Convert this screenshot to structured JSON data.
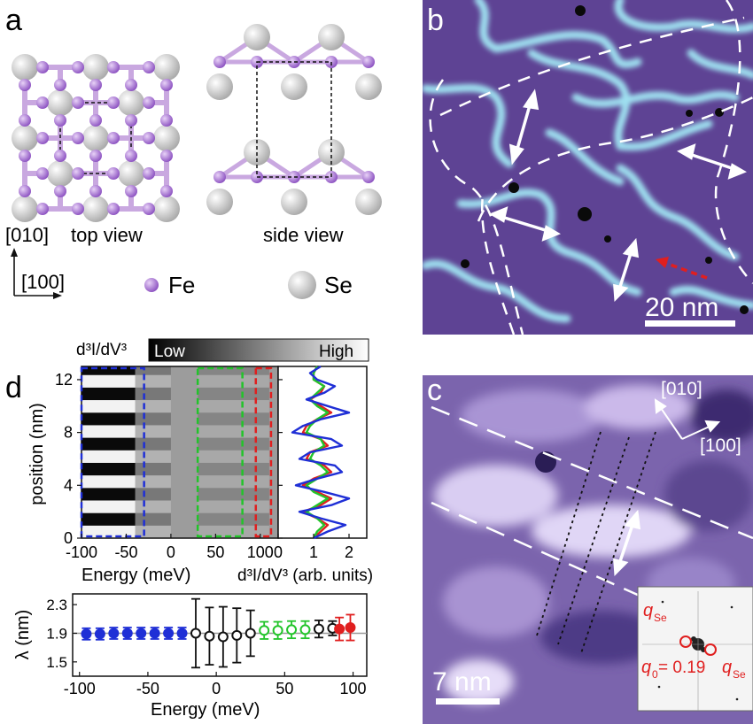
{
  "panels": {
    "a": {
      "letter": "a",
      "top_view_label": "top view",
      "side_view_label": "side view",
      "axis_y": "[010]",
      "axis_x": "[100]",
      "legend": [
        {
          "label": "Fe",
          "color": "#9a5fc7"
        },
        {
          "label": "Se",
          "color": "#c9c9c9"
        }
      ]
    },
    "b": {
      "letter": "b",
      "scale_bar": "20 nm"
    },
    "c": {
      "letter": "c",
      "scale_bar": "7 nm",
      "axis_1": "[010]",
      "axis_2": "[100]",
      "inset_label_top": "q",
      "inset_label_top_sub": "Se",
      "inset_label_bottom": "q",
      "inset_label_bottom_sub": "0",
      "inset_eq": " = 0.19",
      "inset_eq_q": "q",
      "inset_eq_sub": "Se"
    },
    "d": {
      "letter": "d",
      "colorbar_label": "d³I/dV³",
      "colorbar_low": "Low",
      "colorbar_high": "High",
      "heatmap_ylabel": "position (nm)",
      "heatmap_xlabel": "Energy (meV)",
      "profile_xlabel": "d³I/dV³ (arb. units)",
      "lambda_ylabel": "λ (nm)",
      "lambda_xlabel": "Energy (meV)"
    }
  },
  "colors": {
    "blue": "#1f2fd6",
    "green": "#22c42a",
    "red": "#e01f1f",
    "black": "#111111",
    "stm_purple": "#6a4fa0"
  },
  "chart_data": [
    {
      "type": "heatmap",
      "title": "",
      "xlabel": "Energy (meV)",
      "ylabel": "position (nm)",
      "xlim": [
        -100,
        120
      ],
      "ylim": [
        0,
        13
      ],
      "xticks": [
        -100,
        -50,
        0,
        50,
        100
      ],
      "yticks": [
        0,
        4,
        8,
        12
      ],
      "regions": [
        {
          "color": "#1f2fd6",
          "x_range": [
            -100,
            -30
          ]
        },
        {
          "color": "#22c42a",
          "x_range": [
            30,
            80
          ]
        },
        {
          "color": "#e01f1f",
          "x_range": [
            95,
            112
          ]
        }
      ]
    },
    {
      "type": "line",
      "xlabel": "d³I/dV³ (arb. units)",
      "xlim": [
        0,
        2.5
      ],
      "ylim": [
        0,
        13
      ],
      "xticks": [
        0,
        1,
        2
      ],
      "series": [
        {
          "color": "#1f2fd6",
          "x": [
            1.0,
            1.4,
            1.9,
            1.2,
            0.6,
            1.5,
            2.0,
            1.3,
            0.5,
            1.1,
            1.8,
            1.6,
            0.6,
            0.9,
            1.8,
            1.5,
            0.4,
            0.7,
            1.2,
            2.0,
            1.4,
            0.8,
            1.3,
            1.6,
            1.1,
            0.9,
            1.2
          ],
          "y": [
            0,
            0.5,
            1,
            1.5,
            2,
            2.5,
            3,
            3.5,
            4,
            4.5,
            5,
            5.5,
            6,
            6.5,
            7,
            7.5,
            8,
            8.5,
            9,
            9.5,
            10,
            10.5,
            11,
            11.5,
            12,
            12.5,
            13
          ]
        },
        {
          "color": "#22c42a",
          "x": [
            1.0,
            1.1,
            1.3,
            1.1,
            0.8,
            1.1,
            1.4,
            1.0,
            0.8,
            1.1,
            1.4,
            1.2,
            0.9,
            1.0,
            1.3,
            1.2,
            0.8,
            0.9,
            1.1,
            1.4,
            1.1,
            0.9,
            1.1,
            1.3,
            1.0,
            1.0,
            1.1
          ],
          "y": [
            0,
            0.5,
            1,
            1.5,
            2,
            2.5,
            3,
            3.5,
            4,
            4.5,
            5,
            5.5,
            6,
            6.5,
            7,
            7.5,
            8,
            8.5,
            9,
            9.5,
            10,
            10.5,
            11,
            11.5,
            12,
            12.5,
            13
          ]
        },
        {
          "color": "#e01f1f",
          "x": [
            1.0,
            1.2,
            1.4,
            1.1,
            0.7,
            1.2,
            1.5,
            1.1,
            0.7,
            1.0,
            1.5,
            1.3,
            0.8,
            0.9,
            1.4,
            1.2,
            0.7,
            0.8,
            1.1,
            1.5,
            1.2,
            0.9,
            1.2,
            1.3,
            1.0,
            1.0,
            1.1
          ],
          "y": [
            0,
            0.5,
            1,
            1.5,
            2,
            2.5,
            3,
            3.5,
            4,
            4.5,
            5,
            5.5,
            6,
            6.5,
            7,
            7.5,
            8,
            8.5,
            9,
            9.5,
            10,
            10.5,
            11,
            11.5,
            12,
            12.5,
            13
          ]
        }
      ]
    },
    {
      "type": "scatter",
      "xlabel": "Energy (meV)",
      "ylabel": "λ (nm)",
      "xlim": [
        -105,
        110
      ],
      "ylim": [
        1.3,
        2.45
      ],
      "xticks": [
        -100,
        -50,
        0,
        50,
        100
      ],
      "yticks": [
        1.5,
        1.9,
        2.3
      ],
      "reference_line": 1.9,
      "series": [
        {
          "color": "#1f2fd6",
          "style": "filled",
          "x": [
            -95,
            -85,
            -75,
            -65,
            -55,
            -45,
            -35,
            -25
          ],
          "y": [
            1.89,
            1.89,
            1.9,
            1.9,
            1.9,
            1.9,
            1.9,
            1.9
          ],
          "err": [
            0.08,
            0.08,
            0.08,
            0.08,
            0.08,
            0.08,
            0.08,
            0.08
          ]
        },
        {
          "color": "#111111",
          "style": "open",
          "x": [
            -15,
            -5,
            5,
            15,
            25
          ],
          "y": [
            1.9,
            1.86,
            1.85,
            1.87,
            1.9
          ],
          "err": [
            0.48,
            0.4,
            0.42,
            0.38,
            0.32
          ]
        },
        {
          "color": "#22c42a",
          "style": "open",
          "x": [
            35,
            45,
            55,
            65
          ],
          "y": [
            1.94,
            1.94,
            1.95,
            1.95
          ],
          "err": [
            0.12,
            0.12,
            0.12,
            0.12
          ]
        },
        {
          "color": "#111111",
          "style": "open",
          "x": [
            75,
            85
          ],
          "y": [
            1.96,
            1.97
          ],
          "err": [
            0.12,
            0.1
          ]
        },
        {
          "color": "#e01f1f",
          "style": "filled",
          "x": [
            90,
            98
          ],
          "y": [
            1.96,
            1.98
          ],
          "err": [
            0.16,
            0.18
          ]
        }
      ]
    }
  ]
}
